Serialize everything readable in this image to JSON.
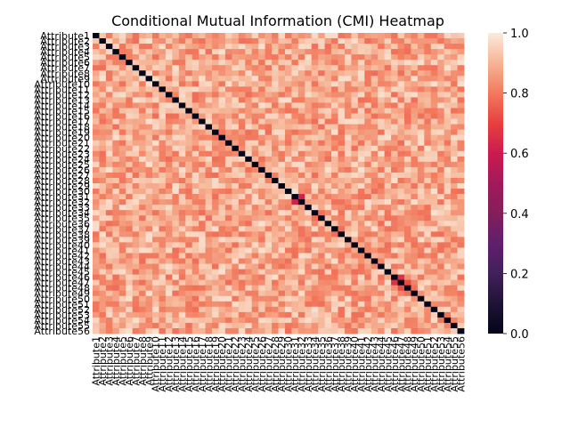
{
  "chart_data": {
    "type": "heatmap",
    "title": "Conditional Mutual Information (CMI) Heatmap",
    "xlabel": "",
    "ylabel": "",
    "labels": [
      "Attribute1",
      "Attribute2",
      "Attribute3",
      "Attribute4",
      "Attribute5",
      "Attribute6",
      "Attribute7",
      "Attribute8",
      "Attribute9",
      "Attribute10",
      "Attribute11",
      "Attribute12",
      "Attribute13",
      "Attribute14",
      "Attribute15",
      "Attribute16",
      "Attribute17",
      "Attribute18",
      "Attribute19",
      "Attribute20",
      "Attribute21",
      "Attribute22",
      "Attribute23",
      "Attribute24",
      "Attribute25",
      "Attribute26",
      "Attribute27",
      "Attribute28",
      "Attribute29",
      "Attribute30",
      "Attribute31",
      "Attribute32",
      "Attribute33",
      "Attribute34",
      "Attribute35",
      "Attribute36",
      "Attribute37",
      "Attribute38",
      "Attribute39",
      "Attribute40",
      "Attribute41",
      "Attribute42",
      "Attribute43",
      "Attribute44",
      "Attribute45",
      "Attribute46",
      "Attribute47",
      "Attribute48",
      "Attribute49",
      "Attribute50",
      "Attribute51",
      "Attribute52",
      "Attribute53",
      "Attribute54",
      "Attribute55",
      "Attribute56"
    ],
    "value_range": [
      0,
      1
    ],
    "off_diagonal_typical_range": [
      0.78,
      0.98
    ],
    "diagonal_value": 0.0,
    "notable_cells": [
      {
        "row": "Attribute31",
        "col": "Attribute32",
        "value": 0.62
      },
      {
        "row": "Attribute32",
        "col": "Attribute31",
        "value": 0.62
      },
      {
        "row": "Attribute46",
        "col": "Attribute47",
        "value": 0.66
      },
      {
        "row": "Attribute47",
        "col": "Attribute46",
        "value": 0.66
      },
      {
        "row": "Attribute47",
        "col": "Attribute48",
        "value": 0.72
      },
      {
        "row": "Attribute48",
        "col": "Attribute47",
        "value": 0.72
      }
    ],
    "colorbar": {
      "colormap": "rocket",
      "ticks": [
        "0.0",
        "0.2",
        "0.4",
        "0.6",
        "0.8",
        "1.0"
      ],
      "tick_values": [
        0.0,
        0.2,
        0.4,
        0.6,
        0.8,
        1.0
      ]
    }
  }
}
